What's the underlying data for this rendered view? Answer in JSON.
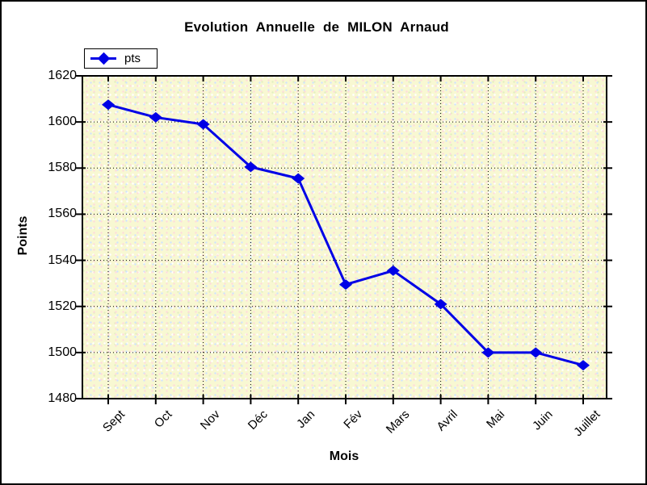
{
  "title": "Evolution Annuelle de MILON Arnaud",
  "legend": {
    "label": "pts"
  },
  "x_axis_title": "Mois",
  "y_axis_title": "Points",
  "colors": {
    "series": "#0000e6",
    "plot_background": "#f8f8d2",
    "grid": "#000000",
    "frame": "#000000",
    "canvas": "#ffffff"
  },
  "chart_data": {
    "type": "line",
    "title": "Evolution Annuelle de MILON Arnaud",
    "xlabel": "Mois",
    "ylabel": "Points",
    "categories": [
      "Sept",
      "Oct",
      "Nov",
      "Déc",
      "Jan",
      "Fév",
      "Mars",
      "Avril",
      "Mai",
      "Juin",
      "Juillet"
    ],
    "series": [
      {
        "name": "pts",
        "values": [
          1607.5,
          1602,
          1599,
          1580.5,
          1575.5,
          1529.5,
          1535.5,
          1521,
          1500,
          1500,
          1494.5
        ]
      }
    ],
    "ylim": [
      1480,
      1620
    ],
    "ytick_step": 20,
    "yticks": [
      1620,
      1600,
      1580,
      1560,
      1540,
      1520,
      1500,
      1480
    ],
    "grid": "dotted",
    "legend_position": "top-left",
    "marker": "diamond",
    "line_color": "#0000e6"
  }
}
